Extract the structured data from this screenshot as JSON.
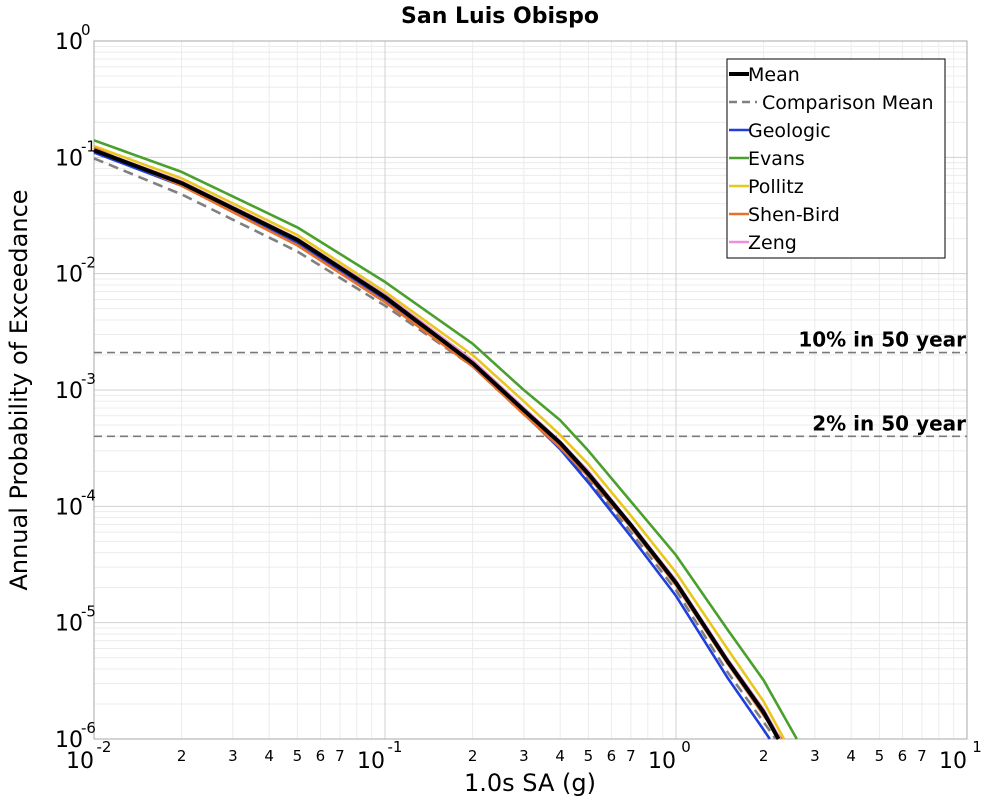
{
  "chart_data": {
    "type": "line",
    "title": "San Luis Obispo",
    "xlabel": "1.0s SA (g)",
    "ylabel": "Annual Probability of Exceedance",
    "x_scale": "log",
    "y_scale": "log",
    "xlim": [
      0.01,
      10
    ],
    "ylim": [
      1e-06,
      1
    ],
    "grid": true,
    "legend_position": "top-right",
    "x_major_ticks": [
      {
        "value": 0.01,
        "base": "10",
        "exp": "-2"
      },
      {
        "value": 0.1,
        "base": "10",
        "exp": "-1"
      },
      {
        "value": 1,
        "base": "10",
        "exp": "0"
      },
      {
        "value": 10,
        "base": "10",
        "exp": "1"
      }
    ],
    "x_minor_tick_labels": [
      "2",
      "3",
      "4",
      "5",
      "6",
      "7"
    ],
    "y_major_ticks": [
      {
        "value": 1,
        "base": "10",
        "exp": "0"
      },
      {
        "value": 0.1,
        "base": "10",
        "exp": "-1"
      },
      {
        "value": 0.01,
        "base": "10",
        "exp": "-2"
      },
      {
        "value": 0.001,
        "base": "10",
        "exp": "-3"
      },
      {
        "value": 0.0001,
        "base": "10",
        "exp": "-4"
      },
      {
        "value": 1e-05,
        "base": "10",
        "exp": "-5"
      },
      {
        "value": 1e-06,
        "base": "10",
        "exp": "-6"
      }
    ],
    "reference_lines": [
      {
        "label": "10% in 50 year",
        "y": 0.0021
      },
      {
        "label": "2% in 50 year",
        "y": 0.0004
      }
    ],
    "series": [
      {
        "name": "Mean",
        "color": "#000000",
        "dash": false,
        "bold": true,
        "x": [
          0.01,
          0.02,
          0.05,
          0.1,
          0.2,
          0.3,
          0.4,
          0.5,
          0.7,
          1,
          1.5,
          2,
          2.25
        ],
        "y": [
          0.115,
          0.06,
          0.0195,
          0.0063,
          0.0017,
          0.00067,
          0.00035,
          0.00019,
          6.9e-05,
          2.2e-05,
          4.7e-06,
          1.7e-06,
          1e-06
        ]
      },
      {
        "name": "Comparison Mean",
        "color": "#808080",
        "dash": true,
        "bold": false,
        "x": [
          0.01,
          0.02,
          0.05,
          0.1,
          0.2,
          0.3,
          0.4,
          0.5,
          0.7,
          1,
          1.5,
          2,
          2.2
        ],
        "y": [
          0.098,
          0.048,
          0.0155,
          0.0053,
          0.0016,
          0.00062,
          0.00032,
          0.00017,
          6e-05,
          1.9e-05,
          3.8e-06,
          1.4e-06,
          1e-06
        ]
      },
      {
        "name": "Geologic",
        "color": "#1f3fdc",
        "dash": false,
        "bold": false,
        "x": [
          0.01,
          0.02,
          0.05,
          0.1,
          0.2,
          0.3,
          0.4,
          0.5,
          0.7,
          1,
          1.5,
          2,
          2.1
        ],
        "y": [
          0.11,
          0.057,
          0.0185,
          0.006,
          0.0016,
          0.00063,
          0.00031,
          0.00016,
          5.5e-05,
          1.7e-05,
          3.4e-06,
          1.2e-06,
          1e-06
        ]
      },
      {
        "name": "Evans",
        "color": "#4aa02c",
        "dash": false,
        "bold": false,
        "x": [
          0.01,
          0.02,
          0.05,
          0.1,
          0.2,
          0.3,
          0.4,
          0.5,
          0.7,
          1,
          1.5,
          2,
          2.6
        ],
        "y": [
          0.14,
          0.075,
          0.025,
          0.0085,
          0.0025,
          0.001,
          0.00055,
          0.0003,
          0.00011,
          3.8e-05,
          8.8e-06,
          3.2e-06,
          1e-06
        ]
      },
      {
        "name": "Pollitz",
        "color": "#e8c81e",
        "dash": false,
        "bold": false,
        "x": [
          0.01,
          0.02,
          0.05,
          0.1,
          0.2,
          0.3,
          0.4,
          0.5,
          0.7,
          1,
          1.5,
          2,
          2.35
        ],
        "y": [
          0.125,
          0.066,
          0.0215,
          0.007,
          0.002,
          0.0008,
          0.00041,
          0.00023,
          8.3e-05,
          2.7e-05,
          6e-06,
          2.1e-06,
          1e-06
        ]
      },
      {
        "name": "Shen-Bird",
        "color": "#e8702a",
        "dash": false,
        "bold": false,
        "x": [
          0.01,
          0.02,
          0.05,
          0.1,
          0.2,
          0.3,
          0.4,
          0.5,
          0.7,
          1,
          1.5,
          2,
          2.3
        ],
        "y": [
          0.12,
          0.057,
          0.0175,
          0.0057,
          0.0016,
          0.00062,
          0.00032,
          0.00018,
          6.6e-05,
          2.1e-05,
          4.5e-06,
          1.6e-06,
          1e-06
        ]
      },
      {
        "name": "Zeng",
        "color": "#ee8fd8",
        "dash": false,
        "bold": false,
        "x": [
          0.01,
          0.02,
          0.05,
          0.1,
          0.2,
          0.3,
          0.4,
          0.5,
          0.7,
          1,
          1.5,
          2,
          2.28
        ],
        "y": [
          0.117,
          0.062,
          0.02,
          0.0066,
          0.0018,
          0.0007,
          0.00036,
          0.0002,
          7.1e-05,
          2.3e-05,
          4.9e-06,
          1.8e-06,
          1e-06
        ]
      }
    ]
  }
}
